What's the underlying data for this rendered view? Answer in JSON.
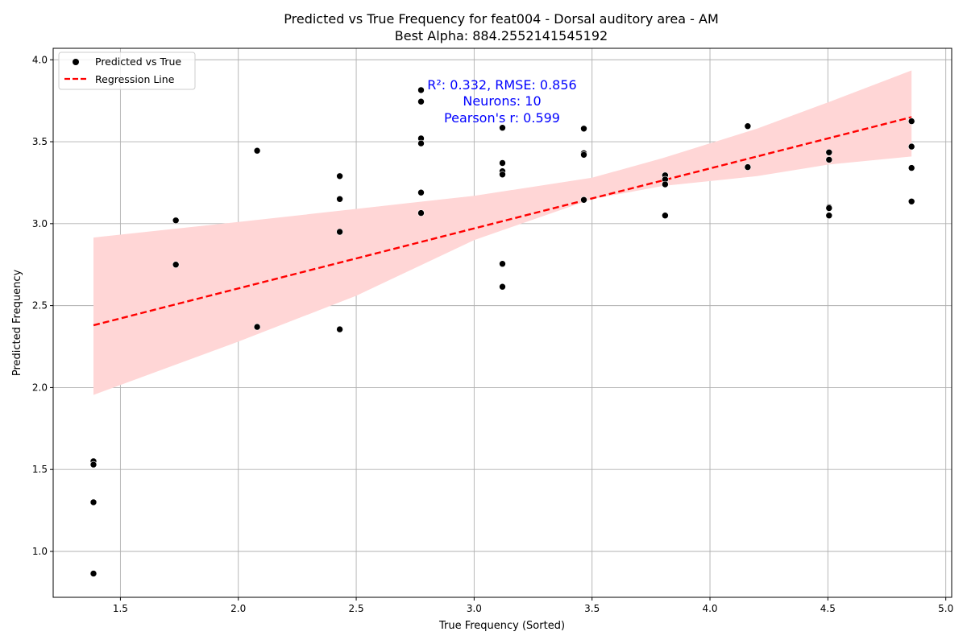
{
  "chart_data": {
    "type": "scatter",
    "title": "Predicted vs True Frequency for feat004 - Dorsal auditory area - AM",
    "subtitle": "Best Alpha: 884.2552141545192",
    "xlabel": "True Frequency (Sorted)",
    "ylabel": "Predicted Frequency",
    "xlim": [
      1.215,
      5.025
    ],
    "ylim": [
      0.72,
      4.07
    ],
    "xticks": [
      "1.5",
      "2.0",
      "2.5",
      "3.0",
      "3.5",
      "4.0",
      "4.5",
      "5.0"
    ],
    "yticks": [
      "1.0",
      "1.5",
      "2.0",
      "2.5",
      "3.0",
      "3.5",
      "4.0"
    ],
    "grid": true,
    "legend_position": "top-left",
    "legend": [
      "Predicted vs True",
      "Regression Line"
    ],
    "annotation": [
      "R²: 0.332, RMSE: 0.856",
      "Neurons: 10",
      "Pearson's r: 0.599"
    ],
    "colors": {
      "points": "#000000",
      "regression": "#ff0000",
      "confidence_band": "#ffd6d6",
      "annotation": "#0000ff",
      "grid": "#b0b0b0"
    },
    "series": [
      {
        "name": "Predicted vs True",
        "points": [
          [
            1.386,
            1.55
          ],
          [
            1.386,
            1.53
          ],
          [
            1.386,
            1.3
          ],
          [
            1.386,
            0.865
          ],
          [
            1.735,
            3.02
          ],
          [
            1.735,
            2.75
          ],
          [
            2.08,
            3.445
          ],
          [
            2.08,
            2.37
          ],
          [
            2.43,
            3.29
          ],
          [
            2.43,
            3.15
          ],
          [
            2.43,
            2.95
          ],
          [
            2.43,
            2.355
          ],
          [
            2.775,
            3.815
          ],
          [
            2.775,
            3.745
          ],
          [
            2.775,
            3.52
          ],
          [
            2.775,
            3.49
          ],
          [
            2.775,
            3.19
          ],
          [
            2.775,
            3.065
          ],
          [
            3.12,
            3.585
          ],
          [
            3.12,
            3.37
          ],
          [
            3.12,
            3.32
          ],
          [
            3.12,
            3.3
          ],
          [
            3.12,
            2.755
          ],
          [
            3.12,
            2.615
          ],
          [
            3.465,
            3.58
          ],
          [
            3.465,
            3.43
          ],
          [
            3.465,
            3.42
          ],
          [
            3.465,
            3.145
          ],
          [
            3.81,
            3.295
          ],
          [
            3.81,
            3.27
          ],
          [
            3.81,
            3.24
          ],
          [
            3.81,
            3.05
          ],
          [
            4.16,
            3.595
          ],
          [
            4.16,
            3.345
          ],
          [
            4.505,
            3.435
          ],
          [
            4.505,
            3.39
          ],
          [
            4.505,
            3.1
          ],
          [
            4.505,
            3.095
          ],
          [
            4.505,
            3.05
          ],
          [
            4.855,
            3.625
          ],
          [
            4.855,
            3.47
          ],
          [
            4.855,
            3.34
          ],
          [
            4.855,
            3.135
          ]
        ]
      },
      {
        "name": "Regression Line",
        "points": [
          [
            1.386,
            2.38
          ],
          [
            4.855,
            3.65
          ]
        ]
      }
    ],
    "confidence_band": {
      "x": [
        1.386,
        2.0,
        2.5,
        3.0,
        3.5,
        3.8,
        4.2,
        4.5,
        4.855
      ],
      "upper": [
        2.915,
        3.01,
        3.09,
        3.17,
        3.28,
        3.4,
        3.58,
        3.74,
        3.935
      ],
      "lower": [
        1.955,
        2.28,
        2.56,
        2.9,
        3.15,
        3.23,
        3.29,
        3.36,
        3.41
      ]
    }
  }
}
